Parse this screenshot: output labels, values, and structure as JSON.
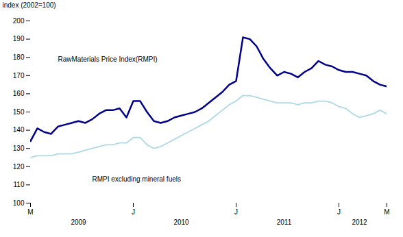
{
  "chart_data": {
    "type": "line",
    "y_label": "index (2002=100)",
    "categories": [
      "M",
      null,
      null,
      null,
      null,
      null,
      null,
      null,
      null,
      null,
      null,
      null,
      null,
      null,
      null,
      "J",
      null,
      null,
      null,
      null,
      null,
      null,
      null,
      null,
      null,
      null,
      null,
      null,
      null,
      null,
      "J",
      null,
      null,
      null,
      null,
      null,
      null,
      null,
      null,
      null,
      null,
      null,
      null,
      null,
      null,
      "J",
      null,
      null,
      null,
      null,
      null,
      null,
      "M"
    ],
    "series": [
      {
        "name": "RawMaterials Price Index(RMPI)",
        "color": "#00008B",
        "values": [
          134,
          141,
          139,
          138,
          142,
          143,
          144,
          145,
          144,
          146,
          149,
          151,
          151,
          152,
          147,
          156,
          156,
          150,
          145,
          144,
          145,
          147,
          148,
          149,
          150,
          152,
          155,
          158,
          161,
          165,
          167,
          191,
          190,
          186,
          179,
          174,
          170,
          172,
          171,
          169,
          172,
          174,
          178,
          176,
          175,
          173,
          172,
          172,
          171,
          170,
          167,
          165,
          164
        ]
      },
      {
        "name": "RMPI excluding mineral fuels",
        "color": "#ADD8E6",
        "values": [
          125,
          126,
          126,
          126,
          127,
          127,
          127,
          128,
          129,
          130,
          131,
          132,
          132,
          133,
          133,
          136,
          136,
          132,
          130,
          131,
          133,
          135,
          137,
          139,
          141,
          143,
          145,
          148,
          151,
          154,
          156,
          159,
          159,
          158,
          157,
          156,
          155,
          155,
          155,
          154,
          155,
          155,
          156,
          156,
          155,
          153,
          152,
          149,
          147,
          148,
          149,
          151,
          149
        ]
      }
    ],
    "ylim": [
      100,
      200
    ],
    "yticks": [
      100,
      110,
      120,
      130,
      140,
      150,
      160,
      170,
      180,
      190,
      200
    ],
    "annotations": [
      {
        "text": "RawMaterials Price Index(RMPI)",
        "x": 4,
        "y": 179
      },
      {
        "text": "RMPI excluding mineral fuels",
        "x": 9,
        "y": 113
      },
      {
        "text": "2009",
        "x": 7
      },
      {
        "text": "2010",
        "x": 22
      },
      {
        "text": "2011",
        "x": 37
      },
      {
        "text": "2012",
        "x": 48
      }
    ],
    "grid": false
  }
}
